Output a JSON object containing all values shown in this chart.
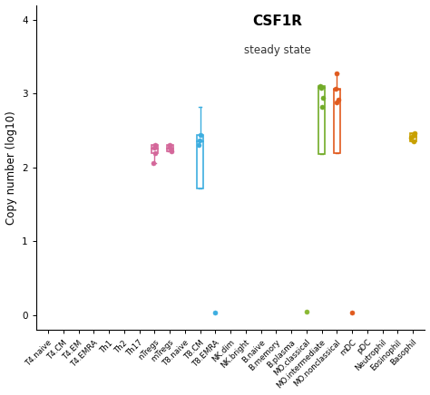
{
  "title": "CSF1R",
  "subtitle": "steady state",
  "ylabel": "Copy number (log10)",
  "ylim": [
    -0.2,
    4.2
  ],
  "yticks": [
    0,
    1,
    2,
    3,
    4
  ],
  "categories": [
    "T4.naive",
    "T4.CM",
    "T4.EM",
    "T4.EMRA",
    "Th1",
    "Th2",
    "Th17",
    "nTregs",
    "mTregs",
    "T8.naive",
    "T8.CM",
    "T8.EMRA",
    "NK.dim",
    "NK.bright",
    "B.naive",
    "B.memory",
    "B.plasma",
    "MO.classical",
    "MO.intermediate",
    "MO.nonclassical",
    "mDC",
    "pDC",
    "Neutrophil",
    "Eosinophil",
    "Basophil"
  ],
  "colors": {
    "T4.naive": "#cccccc",
    "T4.CM": "#cccccc",
    "T4.EM": "#cccccc",
    "T4.EMRA": "#cccccc",
    "Th1": "#cccccc",
    "Th2": "#cccccc",
    "Th17": "#cccccc",
    "nTregs": "#d4679a",
    "mTregs": "#d4679a",
    "T8.naive": "#cccccc",
    "T8.CM": "#3daee0",
    "T8.EMRA": "#3daee0",
    "NK.dim": "#cccccc",
    "NK.bright": "#cccccc",
    "B.naive": "#cccccc",
    "B.memory": "#cccccc",
    "B.plasma": "#cccccc",
    "MO.classical": "#8ab833",
    "MO.intermediate": "#72ab28",
    "MO.nonclassical": "#e05a1e",
    "mDC": "#e05a1e",
    "pDC": "#cccccc",
    "Neutrophil": "#cccccc",
    "Eosinophil": "#cccccc",
    "Basophil": "#c8a000"
  },
  "box_data": {
    "nTregs": {
      "q1": 2.2,
      "q3": 2.31,
      "median": 2.26,
      "whislo": 2.06,
      "whishi": 2.31,
      "dots": [
        2.06,
        2.2,
        2.27,
        2.31
      ]
    },
    "mTregs": {
      "q1": 2.22,
      "q3": 2.3,
      "median": 2.26,
      "whislo": 2.22,
      "whishi": 2.3,
      "dots": [
        2.22,
        2.27,
        2.3
      ]
    },
    "T8.CM": {
      "q1": 1.72,
      "q3": 2.44,
      "median": 2.35,
      "whislo": 1.72,
      "whishi": 2.82,
      "dots": [
        2.3,
        2.37,
        2.44
      ]
    },
    "MO.intermediate": {
      "q1": 2.18,
      "q3": 3.1,
      "median": 3.08,
      "whislo": 2.18,
      "whishi": 3.1,
      "dots": [
        2.82,
        2.94,
        3.08,
        3.1
      ]
    },
    "MO.nonclassical": {
      "q1": 2.2,
      "q3": 3.06,
      "median": 3.05,
      "whislo": 2.2,
      "whishi": 3.27,
      "dots": [
        2.88,
        2.92,
        3.06,
        3.27
      ]
    },
    "Basophil": {
      "q1": 2.35,
      "q3": 2.47,
      "median": 2.41,
      "whislo": 2.35,
      "whishi": 2.47,
      "dots": [
        2.35,
        2.4,
        2.43,
        2.47
      ]
    }
  },
  "single_dots": {
    "T8.EMRA": {
      "val": 0.03,
      "color": "#3daee0"
    },
    "MO.classical": {
      "val": 0.04,
      "color": "#8ab833"
    },
    "mDC": {
      "val": 0.03,
      "color": "#e05a1e"
    }
  },
  "background_color": "#ffffff",
  "box_width": 0.42,
  "dot_size": 13
}
